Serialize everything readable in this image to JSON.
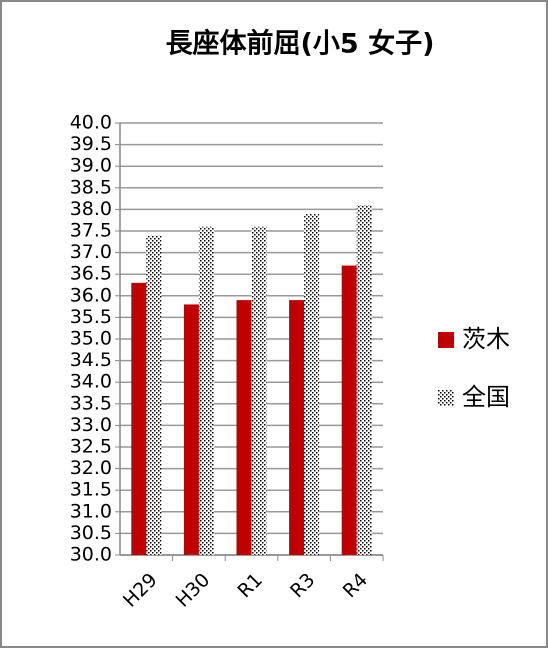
{
  "chart_data": {
    "type": "bar",
    "title": "長座体前屈(小5 女子)",
    "categories": [
      "H29",
      "H30",
      "R1",
      "R3",
      "R4"
    ],
    "series": [
      {
        "name": "茨木",
        "color": "#c00000",
        "values": [
          36.3,
          35.8,
          35.9,
          35.9,
          36.7
        ]
      },
      {
        "name": "全国",
        "color": "#000000",
        "pattern": "dots",
        "values": [
          37.4,
          37.6,
          37.6,
          37.9,
          38.1
        ]
      }
    ],
    "ylim": [
      30,
      40
    ],
    "yticks": [
      {
        "value": 30,
        "label": "30.0"
      },
      {
        "value": 30.5,
        "label": "30.5"
      },
      {
        "value": 31,
        "label": "31.0"
      },
      {
        "value": 31.5,
        "label": "31.5"
      },
      {
        "value": 32,
        "label": "32.0"
      },
      {
        "value": 32.5,
        "label": "32.5"
      },
      {
        "value": 33,
        "label": "33.0"
      },
      {
        "value": 33.5,
        "label": "33.5"
      },
      {
        "value": 34,
        "label": "34.0"
      },
      {
        "value": 34.5,
        "label": "34.5"
      },
      {
        "value": 35,
        "label": "35.0"
      },
      {
        "value": 35.5,
        "label": "35.5"
      },
      {
        "value": 36,
        "label": "36.0"
      },
      {
        "value": 36.5,
        "label": "36.5"
      },
      {
        "value": 37,
        "label": "37.0"
      },
      {
        "value": 37.5,
        "label": "37.5"
      },
      {
        "value": 38,
        "label": "38.0"
      },
      {
        "value": 38.5,
        "label": "38.5"
      },
      {
        "value": 39,
        "label": "39.0"
      },
      {
        "value": 39.5,
        "label": "39.5"
      },
      {
        "value": 40,
        "label": "40.0"
      }
    ],
    "grid": true,
    "legend": "right"
  }
}
